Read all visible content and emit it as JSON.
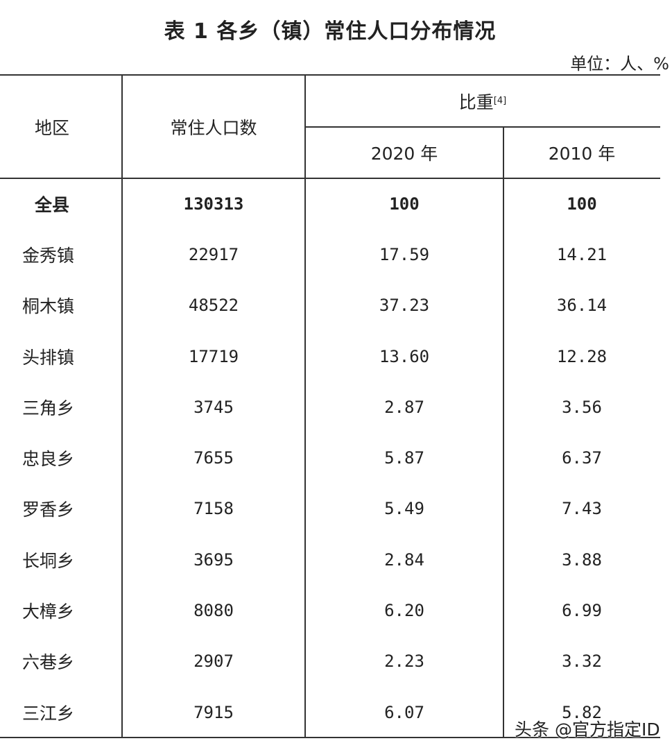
{
  "title": "表 1 各乡（镇）常住人口分布情况",
  "unit": "单位：人、%",
  "header": {
    "region": "地区",
    "population": "常住人口数",
    "share": "比重",
    "share_note": "[4]",
    "year_2020": "2020 年",
    "year_2010": "2010 年"
  },
  "rows": [
    {
      "region": "全县",
      "population": "130313",
      "share_2020": "100",
      "share_2010": "100"
    },
    {
      "region": "金秀镇",
      "population": "22917",
      "share_2020": "17.59",
      "share_2010": "14.21"
    },
    {
      "region": "桐木镇",
      "population": "48522",
      "share_2020": "37.23",
      "share_2010": "36.14"
    },
    {
      "region": "头排镇",
      "population": "17719",
      "share_2020": "13.60",
      "share_2010": "12.28"
    },
    {
      "region": "三角乡",
      "population": "3745",
      "share_2020": "2.87",
      "share_2010": "3.56"
    },
    {
      "region": "忠良乡",
      "population": "7655",
      "share_2020": "5.87",
      "share_2010": "6.37"
    },
    {
      "region": "罗香乡",
      "population": "7158",
      "share_2020": "5.49",
      "share_2010": "7.43"
    },
    {
      "region": "长垌乡",
      "population": "3695",
      "share_2020": "2.84",
      "share_2010": "3.88"
    },
    {
      "region": "大樟乡",
      "population": "8080",
      "share_2020": "6.20",
      "share_2010": "6.99"
    },
    {
      "region": "六巷乡",
      "population": "2907",
      "share_2020": "2.23",
      "share_2010": "3.32"
    },
    {
      "region": "三江乡",
      "population": "7915",
      "share_2020": "6.07",
      "share_2010": "5.82"
    }
  ],
  "watermark": "头条 @官方指定ID"
}
